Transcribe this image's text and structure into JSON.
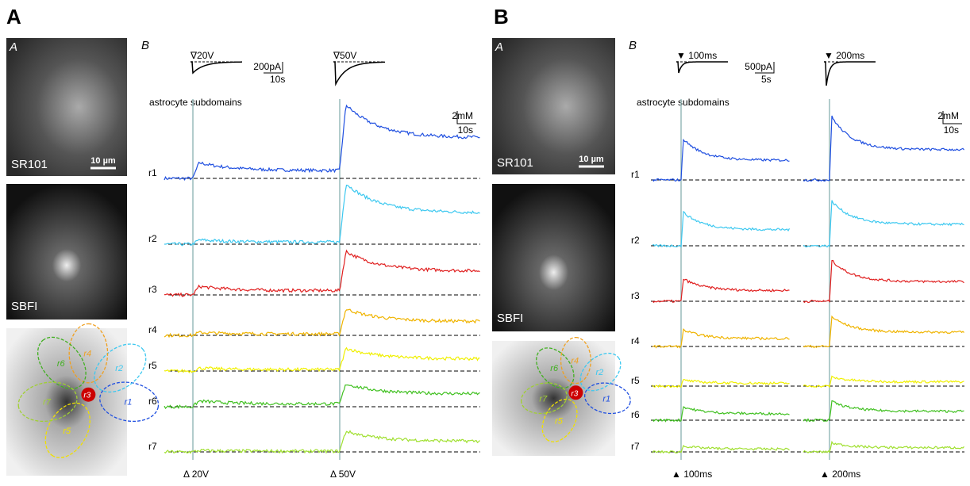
{
  "panels": [
    {
      "label": "A",
      "image_label": "A",
      "chart_label": "B",
      "images": [
        "SR101",
        "SBFI"
      ],
      "scale_bar": "10 µm",
      "roi_labels": [
        "r1",
        "r2",
        "r3",
        "r4",
        "r5",
        "r6",
        "r7"
      ],
      "stimuli": [
        "∇20V",
        "∇50V"
      ],
      "current_scale": [
        "200pA",
        "10s"
      ],
      "heading": "astrocyte subdomains",
      "signal_scale": [
        "2mM",
        "10s"
      ],
      "traces": [
        "r1",
        "r2",
        "r3",
        "r4",
        "r5",
        "r6",
        "r7"
      ],
      "markers": [
        "Δ 20V",
        "Δ 50V"
      ]
    },
    {
      "label": "B",
      "image_label": "A",
      "chart_label": "B",
      "images": [
        "SR101",
        "SBFI"
      ],
      "scale_bar": "10 µm",
      "roi_labels": [
        "r1",
        "r2",
        "r3",
        "r4",
        "r5",
        "r6",
        "r7"
      ],
      "stimuli": [
        "▼ 100ms",
        "▼ 200ms"
      ],
      "current_scale": [
        "500pA",
        "5s"
      ],
      "heading": "astrocyte subdomains",
      "signal_scale": [
        "2mM",
        "10s"
      ],
      "traces": [
        "r1",
        "r2",
        "r3",
        "r4",
        "r5",
        "r6",
        "r7"
      ],
      "markers": [
        "▲ 100ms",
        "▲ 200ms"
      ]
    }
  ]
}
